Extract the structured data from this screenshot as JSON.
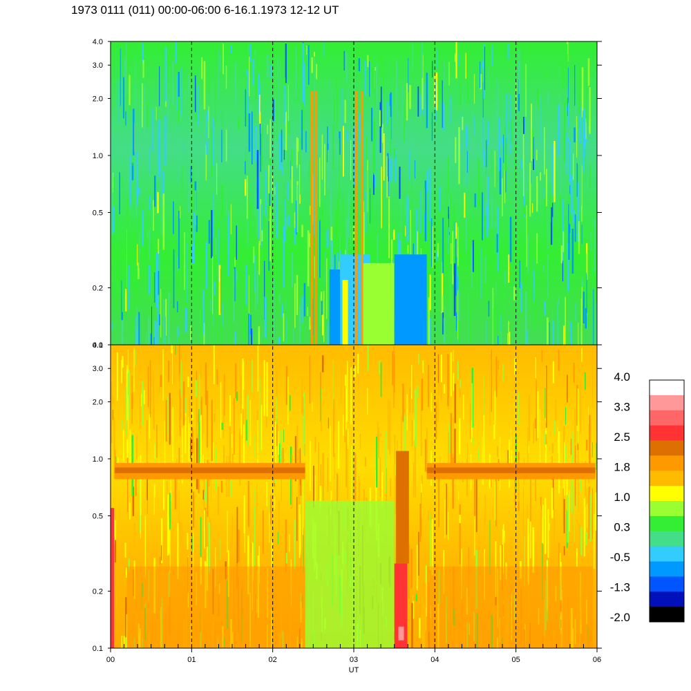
{
  "chart_data": {
    "type": "heatmap",
    "title": "1973 0111 (011) 00:00-06:00 6-16.1.1973  12-12 UT",
    "xlabel": "UT",
    "x_ticks": [
      "00",
      "01",
      "02",
      "03",
      "04",
      "05",
      "06"
    ],
    "xlim": [
      0,
      6
    ],
    "y_scale": "log",
    "ylim": [
      0.1,
      4.0
    ],
    "y_ticks": [
      "0.1",
      "0.2",
      "0.5",
      "1.0",
      "2.0",
      "3.0",
      "4.0"
    ],
    "y_tick_values": [
      0.1,
      0.2,
      0.5,
      1.0,
      2.0,
      3.0,
      4.0
    ],
    "grid": "dashed vertical lines at each hour",
    "panels": [
      {
        "name": "upper",
        "ylim": [
          0.1,
          4.0
        ],
        "typical_level": 0.3
      },
      {
        "name": "lower",
        "ylim": [
          0.1,
          4.0
        ],
        "typical_level": 1.4
      }
    ],
    "colorbar": {
      "labels": [
        "4.0",
        "3.3",
        "2.5",
        "1.8",
        "1.0",
        "0.3",
        "-0.5",
        "-1.3",
        "-2.0"
      ],
      "colors": [
        "#ffffff",
        "#ff9999",
        "#ff6666",
        "#ff3333",
        "#dd7000",
        "#ff9900",
        "#ffbb00",
        "#ffff00",
        "#99ff33",
        "#33ee33",
        "#44dd88",
        "#33ccff",
        "#0099ff",
        "#0055ff",
        "#0011bb",
        "#000000"
      ],
      "position": "right"
    }
  }
}
